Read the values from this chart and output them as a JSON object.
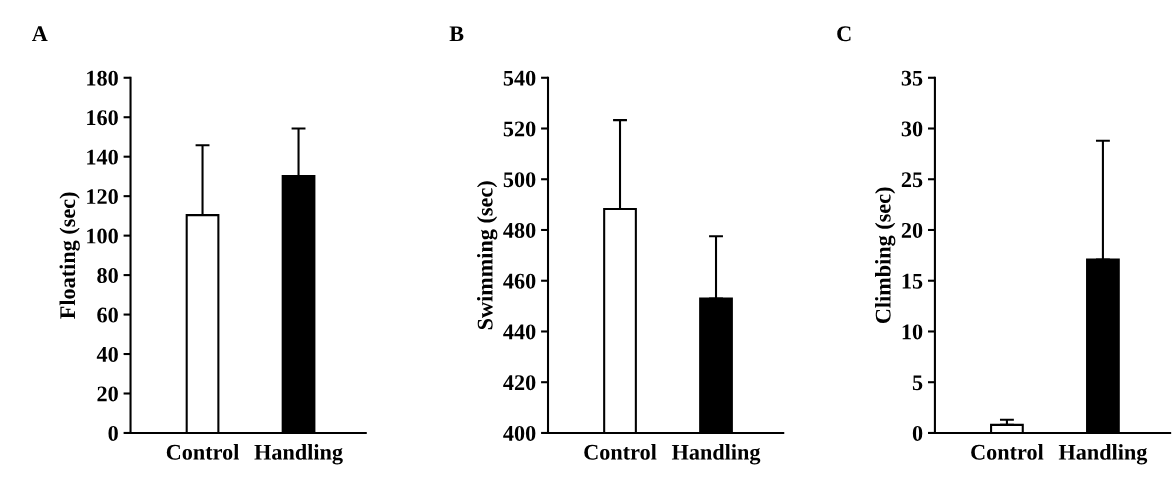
{
  "chart_data": [
    {
      "type": "bar",
      "title": "A",
      "ylabel": "Floating (sec)",
      "categories": [
        "Control",
        "Handling"
      ],
      "values": [
        110.4,
        130.2
      ],
      "colors": [
        "#ffffff",
        "#000000"
      ],
      "errors": [
        [
          110.4,
          145.8
        ],
        [
          130.2,
          154.3
        ]
      ],
      "ylim": [
        0,
        180
      ],
      "yticks": [
        0,
        20,
        40,
        60,
        80,
        100,
        120,
        140,
        160,
        180
      ],
      "grid": false,
      "legend": false
    },
    {
      "type": "bar",
      "title": "B",
      "ylabel": "Swimming (sec)",
      "categories": [
        "Control",
        "Handling"
      ],
      "values": [
        488.3,
        453
      ],
      "colors": [
        "#ffffff",
        "#000000"
      ],
      "errors": [
        [
          488.3,
          523.3
        ],
        [
          453,
          477.5
        ]
      ],
      "ylim": [
        400,
        540
      ],
      "yticks": [
        400,
        420,
        440,
        460,
        480,
        500,
        520,
        540
      ],
      "grid": false,
      "legend": false
    },
    {
      "type": "bar",
      "title": "C",
      "ylabel": "Climbing (sec)",
      "categories": [
        "Control",
        "Handling"
      ],
      "values": [
        0.8,
        17.1
      ],
      "colors": [
        "#ffffff",
        "#000000"
      ],
      "errors": [
        [
          0.8,
          1.3
        ],
        [
          17.1,
          28.8
        ]
      ],
      "ylim": [
        0,
        35
      ],
      "yticks": [
        0,
        5,
        10,
        15,
        20,
        25,
        30,
        35
      ],
      "grid": false,
      "legend": false
    }
  ]
}
